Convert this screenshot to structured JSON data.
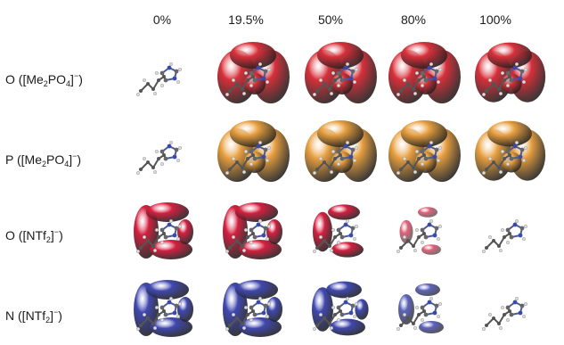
{
  "columns": [
    "0%",
    "19.5%",
    "50%",
    "80%",
    "100%"
  ],
  "rows": [
    {
      "element": "O",
      "anion_prefix": "([Me",
      "s1": "2",
      "mid": "PO",
      "s2": "4",
      "suffix": "]",
      "charge": "−",
      "end": ")",
      "color": "#d8303a"
    },
    {
      "element": "P",
      "anion_prefix": "([Me",
      "s1": "2",
      "mid": "PO",
      "s2": "4",
      "suffix": "]",
      "charge": "−",
      "end": ")",
      "color": "#e8a040"
    },
    {
      "element": "O",
      "anion_prefix": "([NTf",
      "s1": "2",
      "mid": "",
      "s2": "",
      "suffix": "]",
      "charge": "−",
      "end": ")",
      "color": "#d42040"
    },
    {
      "element": "N",
      "anion_prefix": "([NTf",
      "s1": "2",
      "mid": "",
      "s2": "",
      "suffix": "]",
      "charge": "−",
      "end": ")",
      "color": "#4048b0"
    }
  ],
  "icons": {
    "molecule": "cation-ball-and-stick-icon",
    "isosurface": "spatial-distribution-isosurface-icon"
  }
}
